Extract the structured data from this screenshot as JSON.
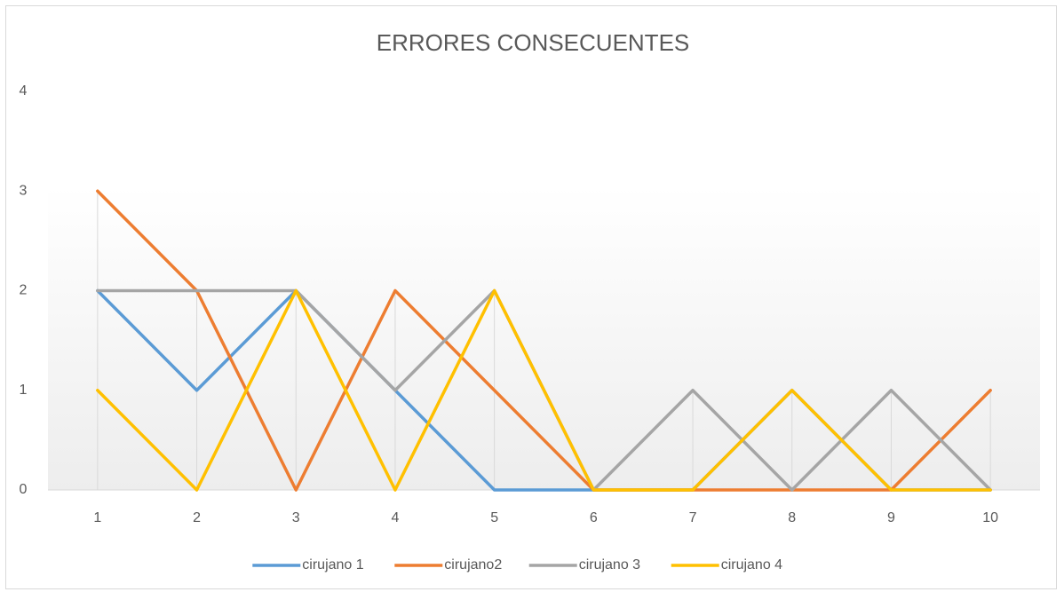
{
  "chart_data": {
    "type": "line",
    "title": "ERRORES CONSECUENTES",
    "categories": [
      "1",
      "2",
      "3",
      "4",
      "5",
      "6",
      "7",
      "8",
      "9",
      "10"
    ],
    "series": [
      {
        "name": "cirujano 1",
        "color": "#5b9bd5",
        "values": [
          2,
          1,
          2,
          1,
          0,
          0,
          0,
          1,
          0,
          0
        ]
      },
      {
        "name": "cirujano2",
        "color": "#ed7d31",
        "values": [
          3,
          2,
          0,
          2,
          1,
          0,
          0,
          0,
          0,
          1
        ]
      },
      {
        "name": "cirujano 3",
        "color": "#a5a5a5",
        "values": [
          2,
          2,
          2,
          1,
          2,
          0,
          1,
          0,
          1,
          0
        ]
      },
      {
        "name": "cirujano 4",
        "color": "#ffc000",
        "values": [
          1,
          0,
          2,
          0,
          2,
          0,
          0,
          1,
          0,
          0
        ]
      }
    ],
    "ylim": [
      0,
      4
    ],
    "yticks": [
      0,
      1,
      2,
      3,
      4
    ],
    "legend": "bottom",
    "drop_lines": true
  }
}
